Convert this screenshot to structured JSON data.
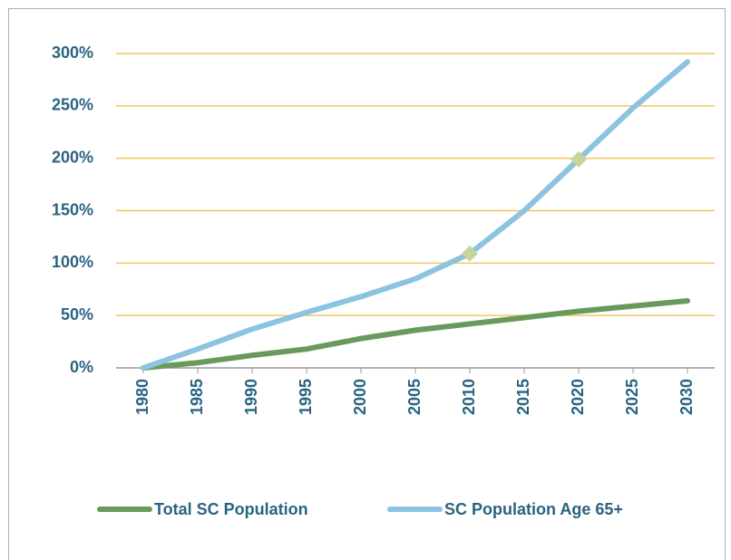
{
  "chart_data": {
    "type": "line",
    "categories": [
      "1980",
      "1985",
      "1990",
      "1995",
      "2000",
      "2005",
      "2010",
      "2015",
      "2020",
      "2025",
      "2030"
    ],
    "series": [
      {
        "name": "Total SC Population",
        "color": "#6a9a5b",
        "values": [
          0,
          5,
          12,
          18,
          28,
          36,
          42,
          48,
          54,
          59,
          64
        ]
      },
      {
        "name": "SC Population Age 65+",
        "color": "#8cc3e0",
        "values": [
          0,
          18,
          37,
          53,
          68,
          85,
          109,
          150,
          199,
          248,
          292
        ],
        "marker_color": "#c3d69b",
        "marked_points": [
          6,
          8
        ]
      }
    ],
    "ylim": [
      0,
      300
    ],
    "yticks": [
      {
        "value": 0,
        "label": "0%"
      },
      {
        "value": 50,
        "label": "50%"
      },
      {
        "value": 100,
        "label": "100%"
      },
      {
        "value": 150,
        "label": "150%"
      },
      {
        "value": 200,
        "label": "200%"
      },
      {
        "value": 250,
        "label": "250%"
      },
      {
        "value": 300,
        "label": "300%"
      }
    ],
    "grid": true,
    "legend": "bottom"
  }
}
